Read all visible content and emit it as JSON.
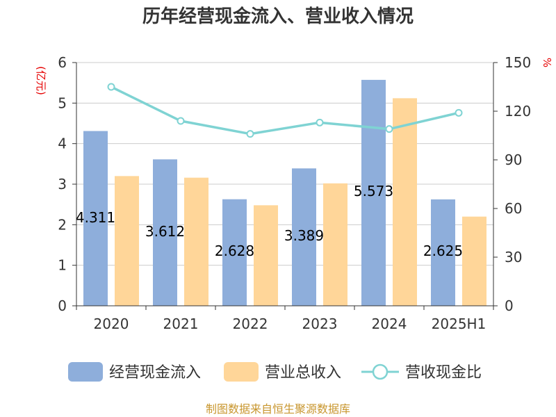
{
  "chart_data": {
    "type": "bar",
    "title": "历年经营现金流入、营业收入情况",
    "y_left_unit": "(亿元)",
    "y_right_unit": "%",
    "categories": [
      "2020",
      "2021",
      "2022",
      "2023",
      "2024",
      "2025H1"
    ],
    "series": [
      {
        "name": "经营现金流入",
        "type": "bar",
        "axis": "left",
        "color": "#8eaedb",
        "values": [
          4.311,
          3.612,
          2.628,
          3.389,
          5.573,
          2.625
        ]
      },
      {
        "name": "营业总收入",
        "type": "bar",
        "axis": "left",
        "color": "#ffd699",
        "values": [
          3.2,
          3.16,
          2.48,
          3.02,
          5.12,
          2.2
        ]
      },
      {
        "name": "营收现金比",
        "type": "line",
        "axis": "right",
        "color": "#7fd3d3",
        "values": [
          135,
          114,
          106,
          113,
          109,
          119
        ]
      }
    ],
    "data_labels": [
      "4.311",
      "3.612",
      "2.628",
      "3.389",
      "5.573",
      "2.625"
    ],
    "y_left": {
      "min": 0,
      "max": 6,
      "ticks": [
        "0",
        "1",
        "2",
        "3",
        "4",
        "5",
        "6"
      ]
    },
    "y_right": {
      "min": 0,
      "max": 150,
      "ticks": [
        "0",
        "30",
        "60",
        "90",
        "120",
        "150"
      ]
    },
    "grid": true,
    "legend_position": "bottom",
    "unit_color": "#e60000"
  },
  "source_text": "制图数据来自恒生聚源数据库",
  "source_color": "#c8962e"
}
